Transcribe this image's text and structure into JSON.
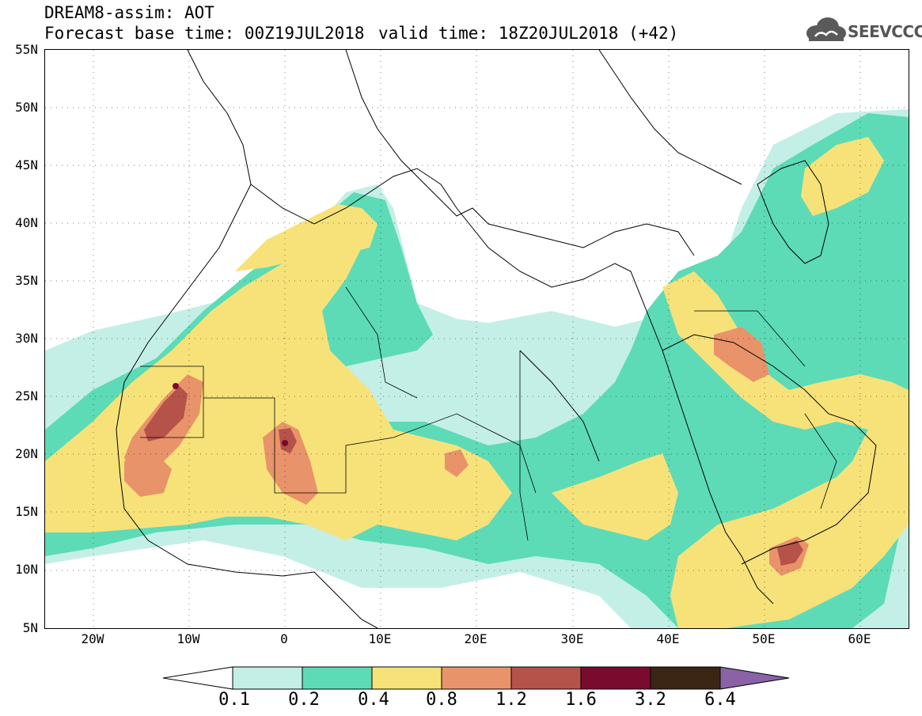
{
  "header": {
    "title": "DREAM8-assim: AOT",
    "base_time": "Forecast base time: 00Z19JUL2018",
    "valid_time": "valid time: 18Z20JUL2018 (+42)",
    "logo_text": "SEEVCCC",
    "logo_icon": "cloud-icon"
  },
  "axes": {
    "lat_labels": [
      "55N",
      "50N",
      "45N",
      "40N",
      "35N",
      "30N",
      "25N",
      "20N",
      "15N",
      "10N",
      "5N"
    ],
    "lon_labels": [
      "20W",
      "10W",
      "0",
      "10E",
      "20E",
      "30E",
      "40E",
      "50E",
      "60E"
    ],
    "lat_range": [
      5,
      55
    ],
    "lon_range": [
      -25,
      65
    ]
  },
  "colorbar": {
    "labels": [
      "0.1",
      "0.2",
      "0.4",
      "0.8",
      "1.2",
      "1.6",
      "3.2",
      "6.4"
    ],
    "colors": [
      "#ffffff",
      "#c4efe6",
      "#5ddbb6",
      "#f7e27a",
      "#e9936a",
      "#b5524a",
      "#7a0a2e",
      "#3b2616",
      "#8a62a6"
    ]
  }
}
